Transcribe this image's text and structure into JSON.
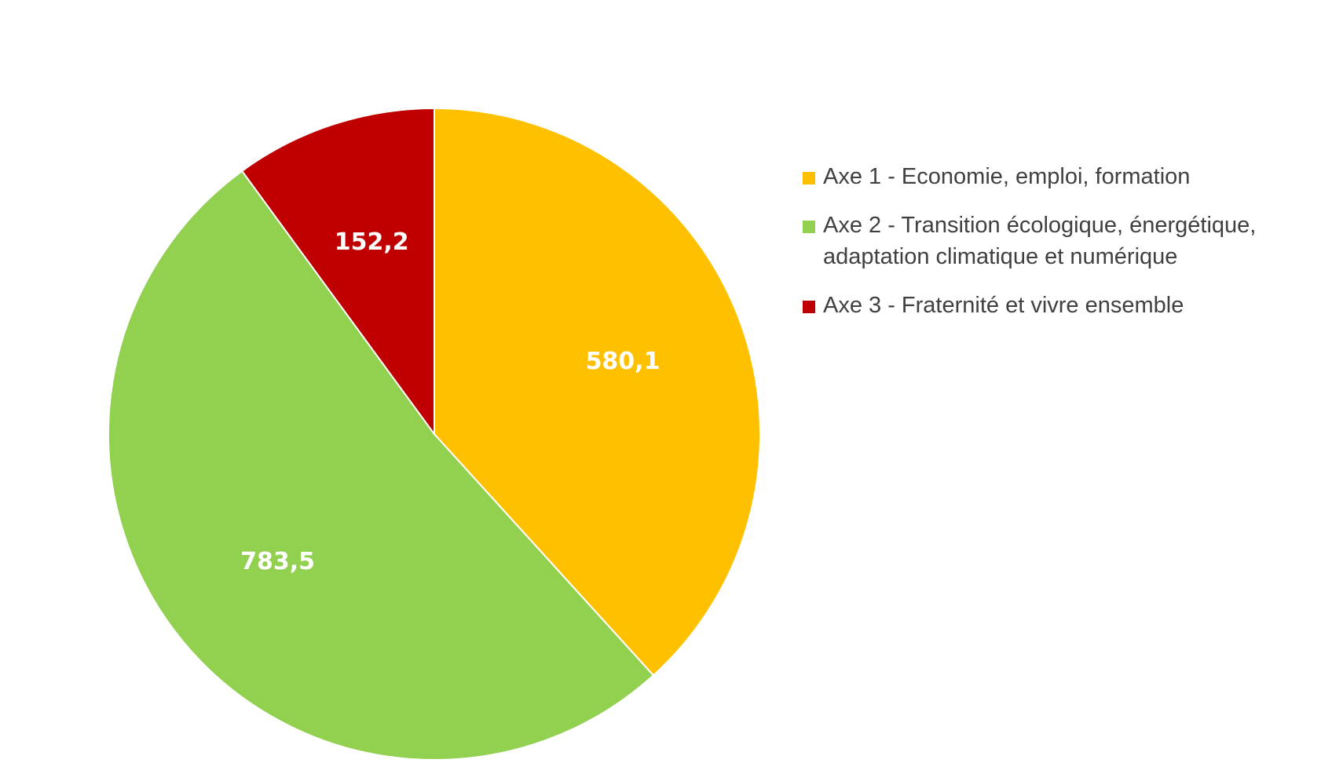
{
  "chart_data": {
    "type": "pie",
    "title": "",
    "categories": [
      "Axe 1 - Economie, emploi, formation",
      "Axe 2 - Transition écologique, énergétique, adaptation climatique et numérique",
      "Axe 3 - Fraternité et vivre ensemble"
    ],
    "values": [
      580.1,
      783.5,
      152.2
    ],
    "value_labels": [
      "580,1",
      "783,5",
      "152,2"
    ],
    "colors": [
      "#FFC000",
      "#92D050",
      "#C00000"
    ],
    "legend_position": "right",
    "start_angle": "top",
    "direction": "clockwise"
  },
  "legend": {
    "items": [
      {
        "label": "Axe 1 - Economie, emploi, formation",
        "color": "#FFC000"
      },
      {
        "label": "Axe 2 - Transition écologique, énergétique, adaptation climatique et numérique",
        "color": "#92D050"
      },
      {
        "label": "Axe 3 - Fraternité et vivre ensemble",
        "color": "#C00000"
      }
    ]
  }
}
